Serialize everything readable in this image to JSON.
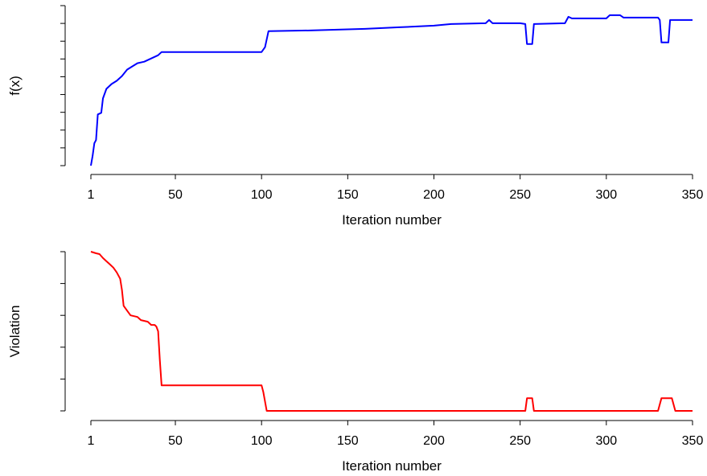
{
  "chart_data": [
    {
      "type": "line",
      "xlabel": "Iteration number",
      "ylabel": "f(x)",
      "xlim": [
        1,
        350
      ],
      "ylim": [
        0,
        1
      ],
      "x_ticks": [
        1,
        50,
        100,
        150,
        200,
        250,
        300,
        350
      ],
      "y_tick_count": 10,
      "y_tick_labels_visible": false,
      "grid": false,
      "series": [
        {
          "color": "#0000ff",
          "points": [
            [
              1,
              0.0
            ],
            [
              2,
              0.06
            ],
            [
              3,
              0.14
            ],
            [
              4,
              0.16
            ],
            [
              5,
              0.32
            ],
            [
              7,
              0.33
            ],
            [
              8,
              0.42
            ],
            [
              10,
              0.48
            ],
            [
              13,
              0.51
            ],
            [
              16,
              0.53
            ],
            [
              19,
              0.56
            ],
            [
              22,
              0.6
            ],
            [
              25,
              0.62
            ],
            [
              28,
              0.64
            ],
            [
              32,
              0.65
            ],
            [
              36,
              0.67
            ],
            [
              40,
              0.69
            ],
            [
              42,
              0.71
            ],
            [
              60,
              0.71
            ],
            [
              80,
              0.71
            ],
            [
              100,
              0.71
            ],
            [
              102,
              0.74
            ],
            [
              104,
              0.84
            ],
            [
              130,
              0.845
            ],
            [
              160,
              0.855
            ],
            [
              180,
              0.865
            ],
            [
              200,
              0.875
            ],
            [
              210,
              0.885
            ],
            [
              230,
              0.89
            ],
            [
              232,
              0.91
            ],
            [
              234,
              0.89
            ],
            [
              250,
              0.89
            ],
            [
              253,
              0.885
            ],
            [
              254,
              0.76
            ],
            [
              256,
              0.76
            ],
            [
              257,
              0.76
            ],
            [
              258,
              0.885
            ],
            [
              276,
              0.89
            ],
            [
              278,
              0.93
            ],
            [
              280,
              0.92
            ],
            [
              300,
              0.92
            ],
            [
              302,
              0.94
            ],
            [
              308,
              0.94
            ],
            [
              310,
              0.925
            ],
            [
              330,
              0.925
            ],
            [
              331,
              0.91
            ],
            [
              332,
              0.77
            ],
            [
              336,
              0.77
            ],
            [
              337,
              0.91
            ],
            [
              340,
              0.91
            ],
            [
              350,
              0.91
            ]
          ]
        }
      ]
    },
    {
      "type": "line",
      "xlabel": "Iteration number",
      "ylabel": "Violation",
      "xlim": [
        1,
        350
      ],
      "ylim": [
        0,
        1
      ],
      "x_ticks": [
        1,
        50,
        100,
        150,
        200,
        250,
        300,
        350
      ],
      "y_tick_count": 6,
      "y_tick_labels_visible": false,
      "grid": false,
      "series": [
        {
          "color": "#ff0000",
          "points": [
            [
              1,
              1.0
            ],
            [
              4,
              0.99
            ],
            [
              6,
              0.985
            ],
            [
              8,
              0.96
            ],
            [
              10,
              0.94
            ],
            [
              12,
              0.92
            ],
            [
              14,
              0.9
            ],
            [
              16,
              0.87
            ],
            [
              18,
              0.83
            ],
            [
              19,
              0.76
            ],
            [
              20,
              0.66
            ],
            [
              22,
              0.63
            ],
            [
              24,
              0.6
            ],
            [
              28,
              0.59
            ],
            [
              30,
              0.57
            ],
            [
              34,
              0.56
            ],
            [
              36,
              0.54
            ],
            [
              38,
              0.54
            ],
            [
              39,
              0.53
            ],
            [
              40,
              0.5
            ],
            [
              41,
              0.32
            ],
            [
              42,
              0.16
            ],
            [
              60,
              0.16
            ],
            [
              80,
              0.16
            ],
            [
              100,
              0.16
            ],
            [
              101,
              0.12
            ],
            [
              103,
              0.0
            ],
            [
              150,
              0.0
            ],
            [
              200,
              0.0
            ],
            [
              253,
              0.0
            ],
            [
              254,
              0.08
            ],
            [
              257,
              0.08
            ],
            [
              258,
              0.0
            ],
            [
              330,
              0.0
            ],
            [
              332,
              0.08
            ],
            [
              338,
              0.08
            ],
            [
              340,
              0.0
            ],
            [
              350,
              0.0
            ]
          ]
        }
      ]
    }
  ]
}
